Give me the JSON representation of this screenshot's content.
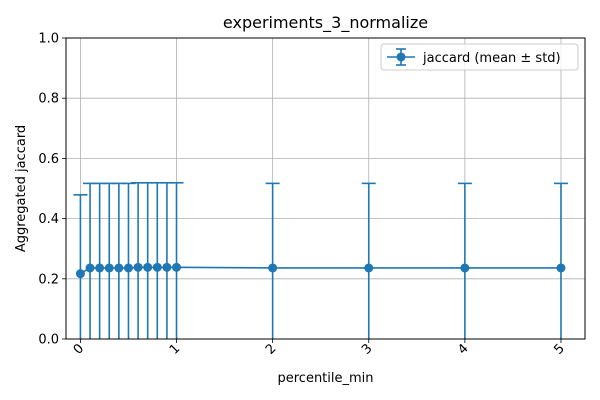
{
  "chart_data": {
    "type": "line",
    "title": "experiments_3_normalize",
    "xlabel": "percentile_min",
    "ylabel": "Aggregated jaccard",
    "ylim": [
      0,
      1
    ],
    "xlim": [
      -0.15,
      5.25
    ],
    "grid": true,
    "legend_position": "top-right",
    "x_ticks": [
      "0",
      "1",
      "2",
      "3",
      "4",
      "5"
    ],
    "y_ticks": [
      "0.0",
      "0.2",
      "0.4",
      "0.6",
      "0.8",
      "1.0"
    ],
    "series": [
      {
        "name": "jaccard (mean ± std)",
        "color": "#1f77b4",
        "x": [
          0,
          0.1,
          0.2,
          0.3,
          0.4,
          0.5,
          0.6,
          0.7,
          0.8,
          0.9,
          1,
          2,
          3,
          4,
          5
        ],
        "y": [
          0.217,
          0.236,
          0.236,
          0.236,
          0.236,
          0.236,
          0.238,
          0.238,
          0.238,
          0.238,
          0.238,
          0.236,
          0.236,
          0.236,
          0.236
        ],
        "err": [
          0.262,
          0.281,
          0.281,
          0.281,
          0.281,
          0.281,
          0.281,
          0.281,
          0.281,
          0.281,
          0.281,
          0.281,
          0.281,
          0.281,
          0.281
        ]
      }
    ]
  }
}
